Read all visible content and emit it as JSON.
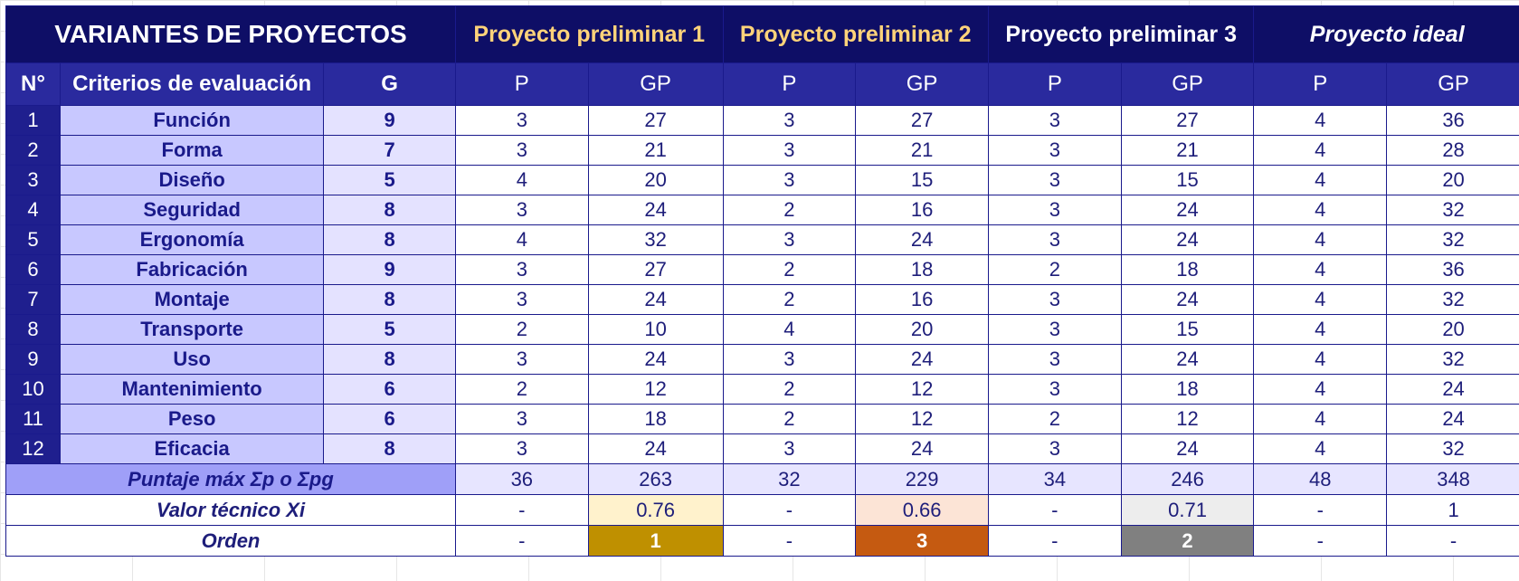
{
  "title": "VARIANTES DE PROYECTOS",
  "projects": [
    "Proyecto preliminar 1",
    "Proyecto preliminar 2",
    "Proyecto preliminar 3",
    "Proyecto ideal"
  ],
  "header": {
    "num": "N°",
    "criteria": "Criterios de evaluación",
    "g": "G",
    "p": "P",
    "gp": "GP"
  },
  "rows": [
    {
      "n": "1",
      "criterion": "Función",
      "g": "9",
      "v": [
        "3",
        "27",
        "3",
        "27",
        "3",
        "27",
        "4",
        "36"
      ]
    },
    {
      "n": "2",
      "criterion": "Forma",
      "g": "7",
      "v": [
        "3",
        "21",
        "3",
        "21",
        "3",
        "21",
        "4",
        "28"
      ]
    },
    {
      "n": "3",
      "criterion": "Diseño",
      "g": "5",
      "v": [
        "4",
        "20",
        "3",
        "15",
        "3",
        "15",
        "4",
        "20"
      ]
    },
    {
      "n": "4",
      "criterion": "Seguridad",
      "g": "8",
      "v": [
        "3",
        "24",
        "2",
        "16",
        "3",
        "24",
        "4",
        "32"
      ]
    },
    {
      "n": "5",
      "criterion": "Ergonomía",
      "g": "8",
      "v": [
        "4",
        "32",
        "3",
        "24",
        "3",
        "24",
        "4",
        "32"
      ]
    },
    {
      "n": "6",
      "criterion": "Fabricación",
      "g": "9",
      "v": [
        "3",
        "27",
        "2",
        "18",
        "2",
        "18",
        "4",
        "36"
      ]
    },
    {
      "n": "7",
      "criterion": "Montaje",
      "g": "8",
      "v": [
        "3",
        "24",
        "2",
        "16",
        "3",
        "24",
        "4",
        "32"
      ]
    },
    {
      "n": "8",
      "criterion": "Transporte",
      "g": "5",
      "v": [
        "2",
        "10",
        "4",
        "20",
        "3",
        "15",
        "4",
        "20"
      ]
    },
    {
      "n": "9",
      "criterion": "Uso",
      "g": "8",
      "v": [
        "3",
        "24",
        "3",
        "24",
        "3",
        "24",
        "4",
        "32"
      ]
    },
    {
      "n": "10",
      "criterion": "Mantenimiento",
      "g": "6",
      "v": [
        "2",
        "12",
        "2",
        "12",
        "3",
        "18",
        "4",
        "24"
      ]
    },
    {
      "n": "11",
      "criterion": "Peso",
      "g": "6",
      "v": [
        "3",
        "18",
        "2",
        "12",
        "2",
        "12",
        "4",
        "24"
      ]
    },
    {
      "n": "12",
      "criterion": "Eficacia",
      "g": "8",
      "v": [
        "3",
        "24",
        "3",
        "24",
        "3",
        "24",
        "4",
        "32"
      ]
    }
  ],
  "summary": {
    "max_label": "Puntaje máx Σp o Σpg",
    "max_values": [
      "36",
      "263",
      "32",
      "229",
      "34",
      "246",
      "48",
      "348"
    ],
    "xi_label": "Valor técnico Xi",
    "xi_values": [
      "-",
      "0.76",
      "-",
      "0.66",
      "-",
      "0.71",
      "-",
      "1"
    ],
    "xi_colors": [
      "#ffffff",
      "#fff2cc",
      "#ffffff",
      "#fce4d6",
      "#ffffff",
      "#ededed",
      "#ffffff",
      "#ffffff"
    ],
    "order_label": "Orden",
    "order_values": [
      "-",
      "1",
      "-",
      "3",
      "-",
      "2",
      "-",
      "-"
    ],
    "order_colors": [
      "#ffffff",
      "#bf9000",
      "#ffffff",
      "#c55a11",
      "#ffffff",
      "#808080",
      "#ffffff",
      "#ffffff"
    ]
  }
}
